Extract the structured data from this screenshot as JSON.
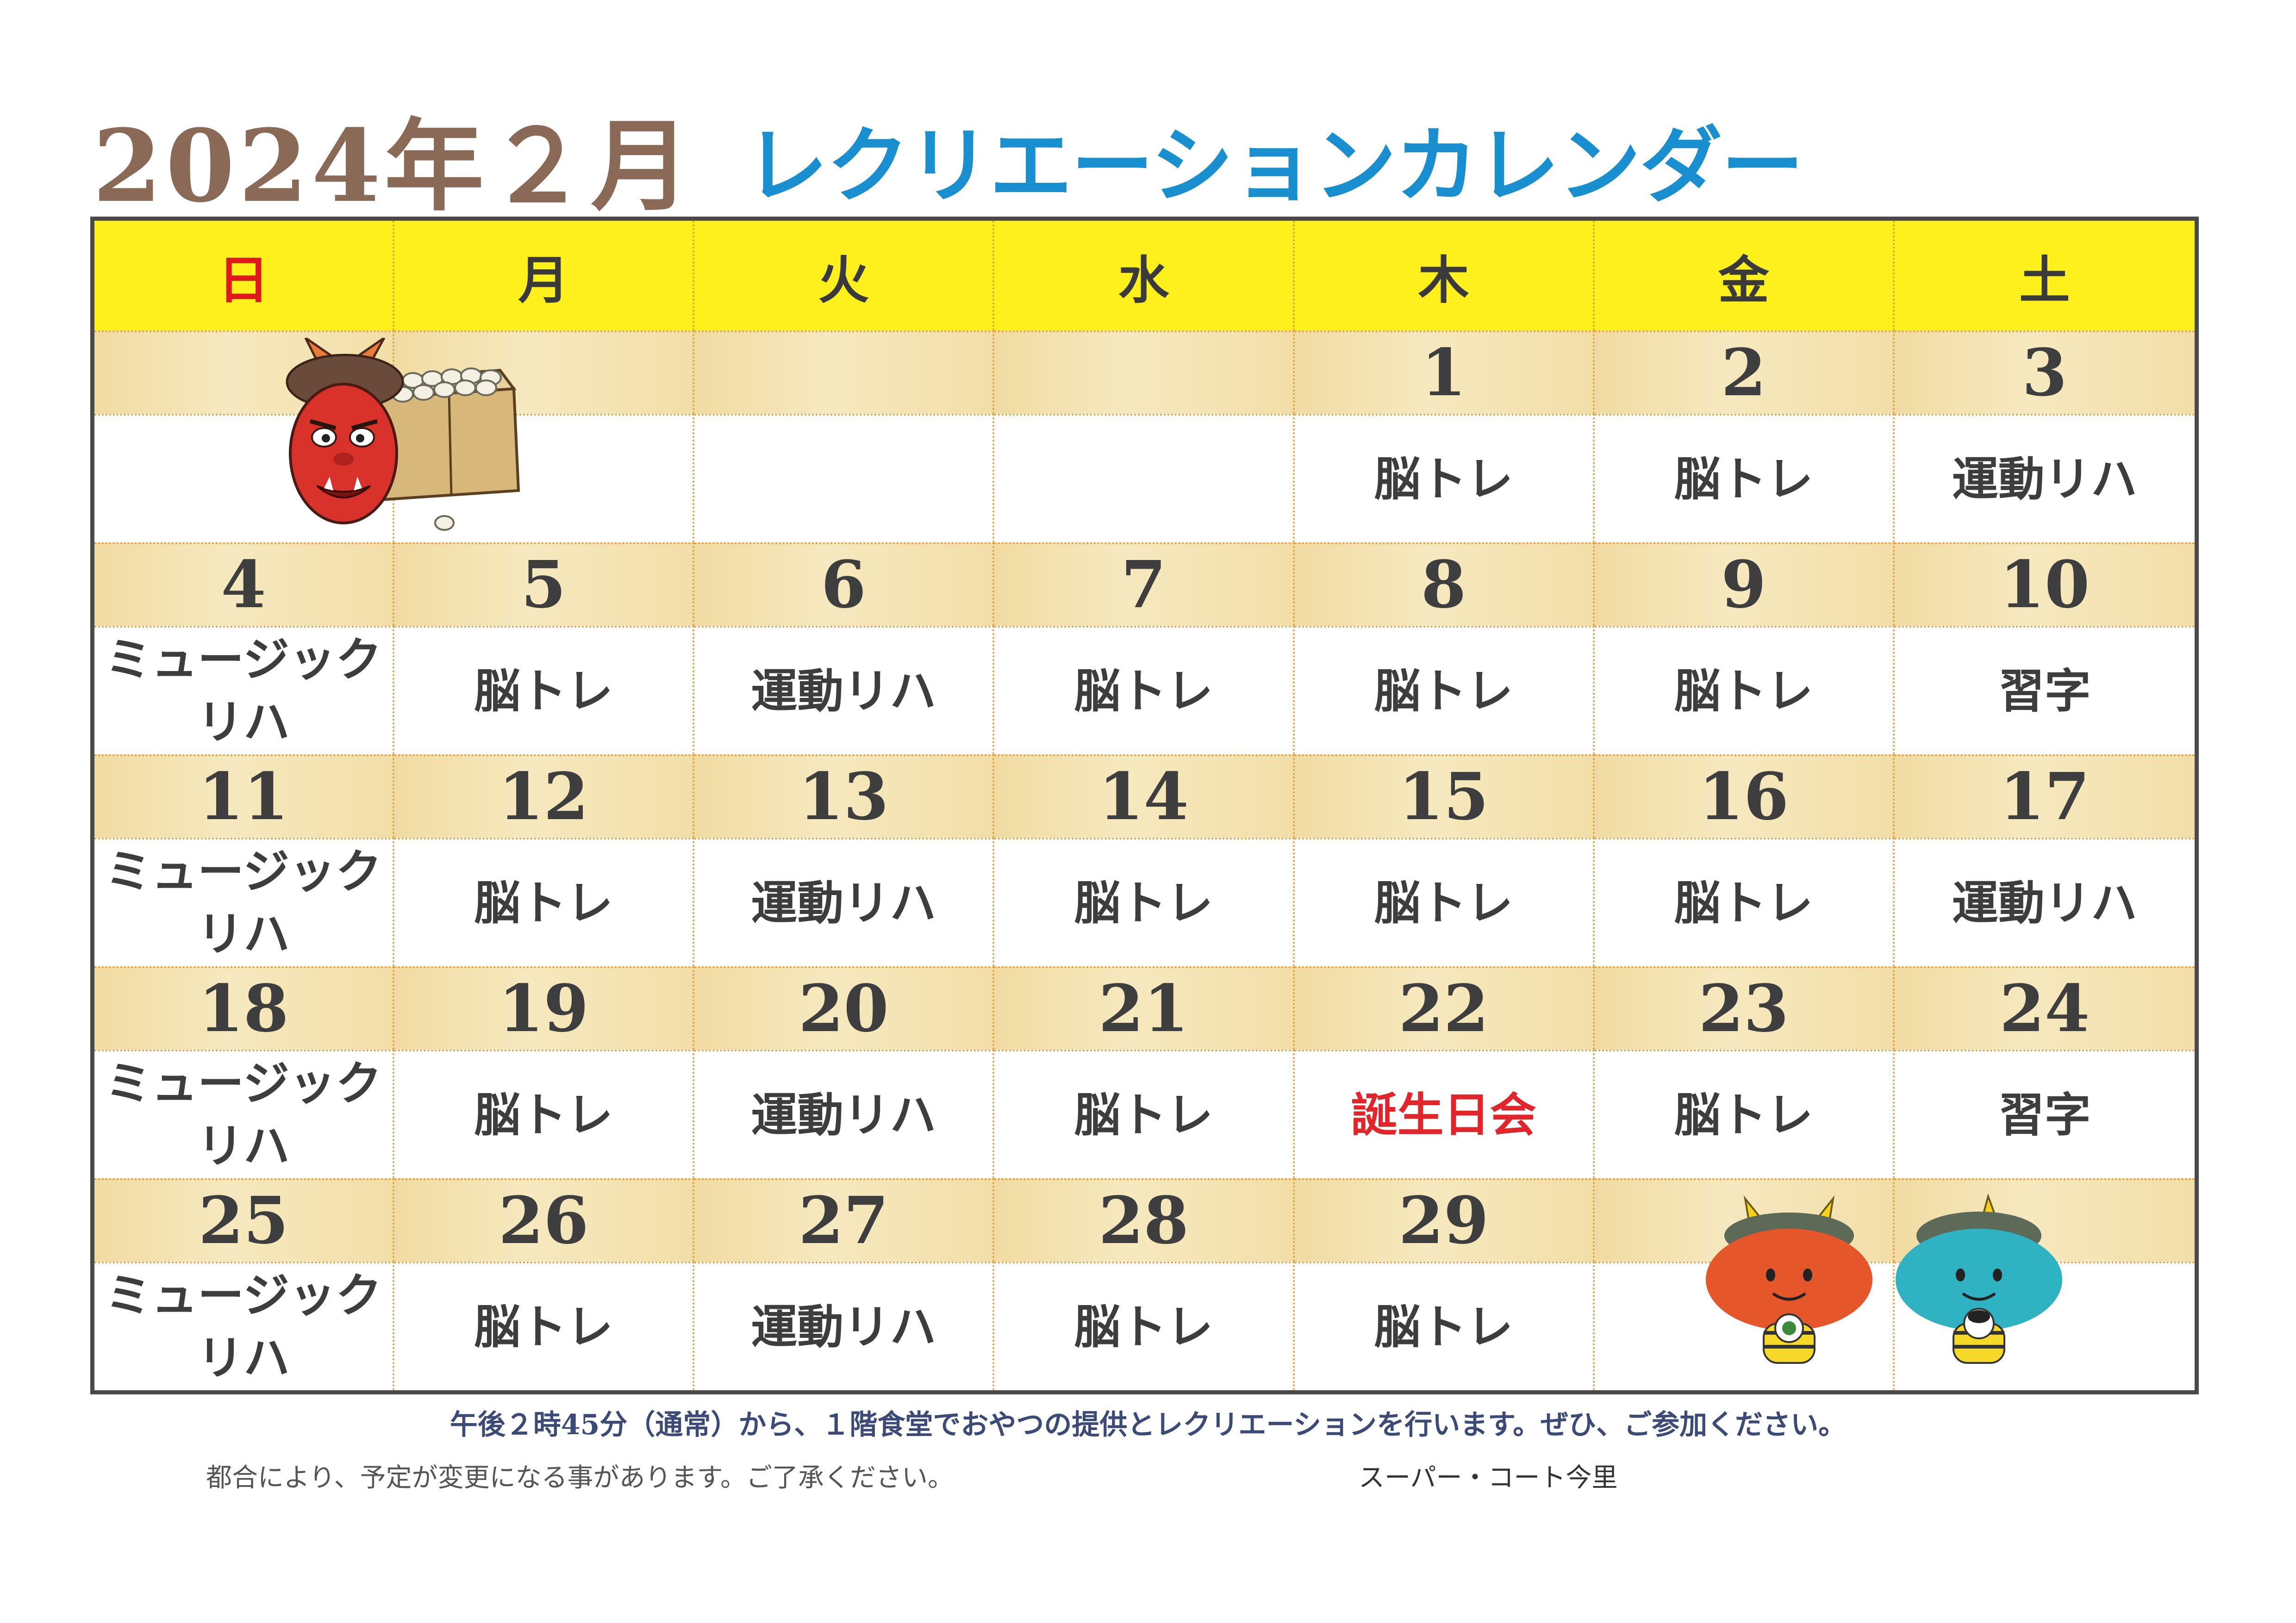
{
  "title": {
    "year_month": "2024年２月",
    "main": "レクリエーションカレンダー"
  },
  "weekdays": [
    "日",
    "月",
    "火",
    "水",
    "木",
    "金",
    "土"
  ],
  "weeks": [
    {
      "days": [
        "",
        "",
        "",
        "",
        "1",
        "2",
        "3"
      ],
      "activities": [
        "",
        "",
        "",
        "",
        "脳トレ",
        "脳トレ",
        "運動リハ"
      ]
    },
    {
      "days": [
        "4",
        "5",
        "6",
        "7",
        "8",
        "9",
        "10"
      ],
      "activities": [
        "ミュージック\nリハ",
        "脳トレ",
        "運動リハ",
        "脳トレ",
        "脳トレ",
        "脳トレ",
        "習字"
      ]
    },
    {
      "days": [
        "11",
        "12",
        "13",
        "14",
        "15",
        "16",
        "17"
      ],
      "activities": [
        "ミュージック\nリハ",
        "脳トレ",
        "運動リハ",
        "脳トレ",
        "脳トレ",
        "脳トレ",
        "運動リハ"
      ]
    },
    {
      "days": [
        "18",
        "19",
        "20",
        "21",
        "22",
        "23",
        "24"
      ],
      "activities": [
        "ミュージック\nリハ",
        "脳トレ",
        "運動リハ",
        "脳トレ",
        "誕生日会",
        "脳トレ",
        "習字"
      ]
    },
    {
      "days": [
        "25",
        "26",
        "27",
        "28",
        "29",
        "",
        ""
      ],
      "activities": [
        "ミュージック\nリハ",
        "脳トレ",
        "運動リハ",
        "脳トレ",
        "脳トレ",
        "",
        ""
      ]
    }
  ],
  "highlight": {
    "text": "誕生日会",
    "color": "#e0262a"
  },
  "footer": {
    "main": "午後２時45分（通常）から、１階食堂でおやつの提供とレクリエーションを行います。ぜひ、ご参加ください。",
    "note": "都合により、予定が変更になる事があります。ご了承ください。",
    "organization": "スーパー・コート今里"
  },
  "colors": {
    "header_bg": "#fef01c",
    "date_row_bg": "#f3dea8",
    "title_blue": "#1a8fd0",
    "title_brown": "#8a6a56",
    "sunday_red": "#e01a1a"
  },
  "illustrations": [
    "red-oni-mask-with-bean-box-icon",
    "red-oni-character-icon",
    "blue-oni-character-icon"
  ]
}
